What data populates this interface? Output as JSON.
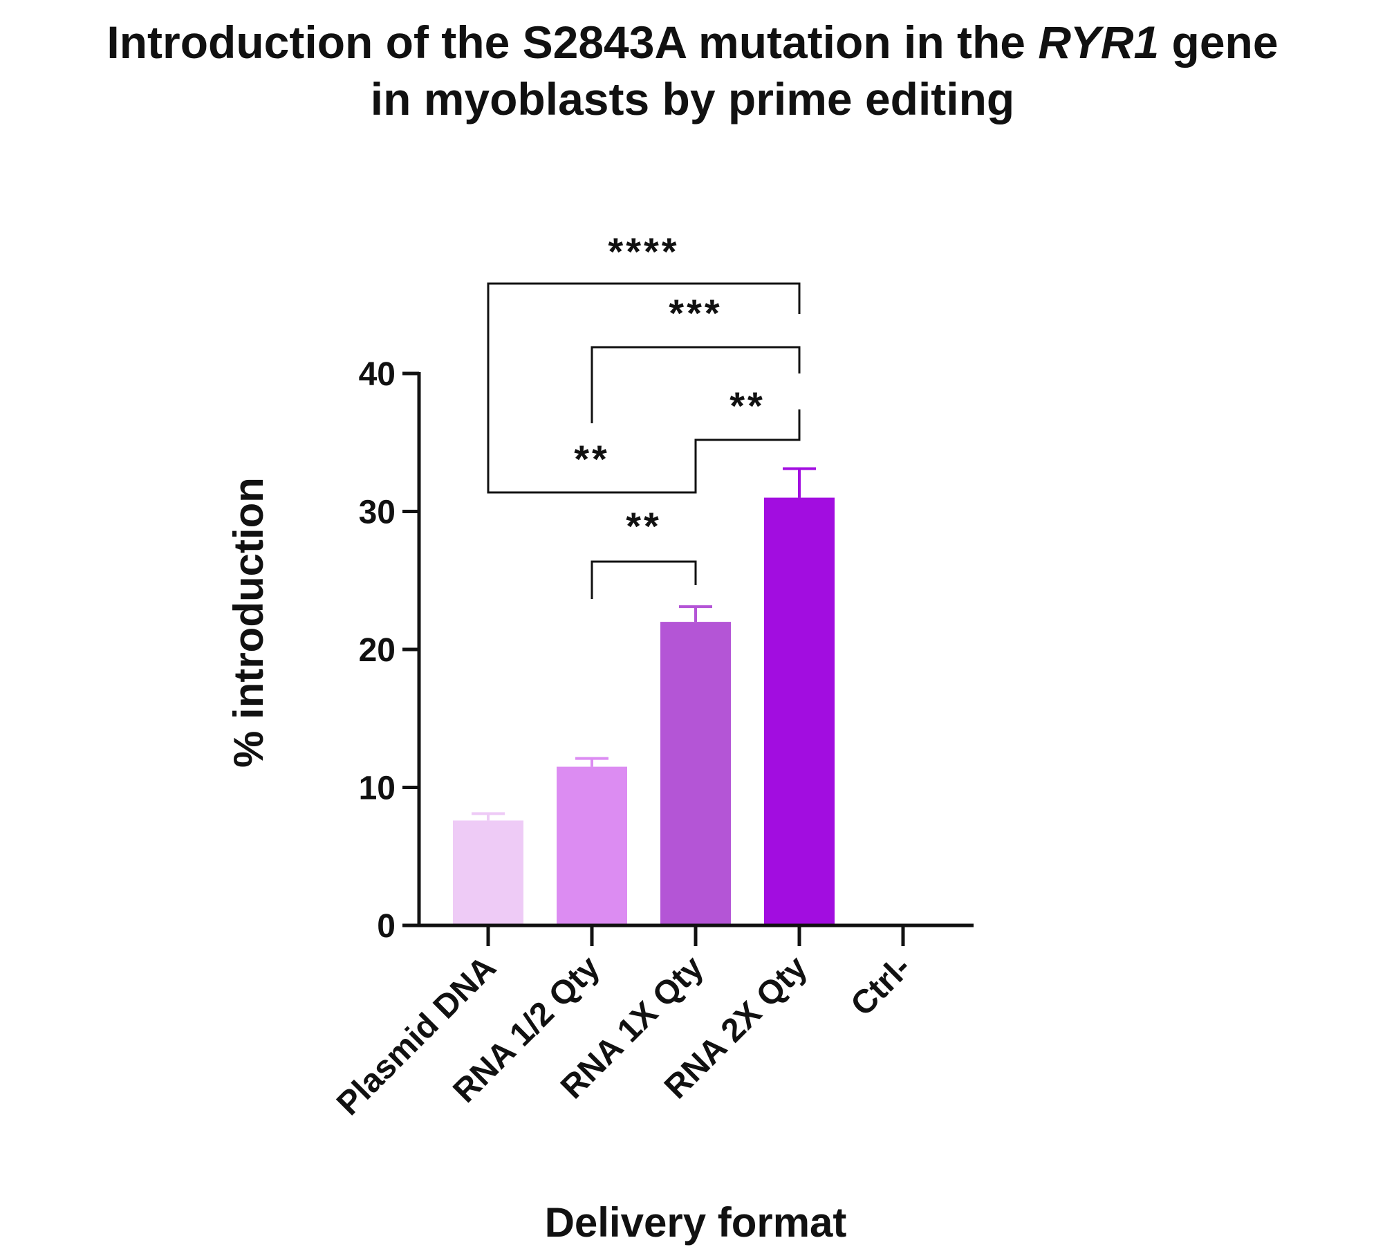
{
  "chart_data": {
    "type": "bar",
    "title_parts": {
      "line1_before": "Introduction of the S2843A mutation in the ",
      "line1_gene": "RYR1",
      "line1_after": " gene",
      "line2": "in myoblasts by prime editing"
    },
    "xlabel": "Delivery format",
    "ylabel": "% introduction",
    "ylim": [
      0,
      40
    ],
    "yticks": [
      "0",
      "10",
      "20",
      "30",
      "40"
    ],
    "categories": [
      "Plasmid DNA",
      "RNA 1/2 Qty",
      "RNA 1X Qty",
      "RNA 2X Qty",
      "Ctrl-"
    ],
    "values": [
      7.6,
      11.5,
      22.0,
      31.0,
      0
    ],
    "errors": [
      0.5,
      0.6,
      1.1,
      2.1,
      0
    ],
    "colors": [
      "#eecbf6",
      "#dc8cf2",
      "#b455d6",
      "#a20de0",
      "#ffffff"
    ],
    "significance": [
      {
        "from": 0,
        "to": 3,
        "label": "****"
      },
      {
        "from": 1,
        "to": 3,
        "label": "***"
      },
      {
        "from": 2,
        "to": 3,
        "label": "**"
      },
      {
        "from": 0,
        "to": 2,
        "label": "**"
      },
      {
        "from": 1,
        "to": 2,
        "label": "**"
      }
    ]
  }
}
